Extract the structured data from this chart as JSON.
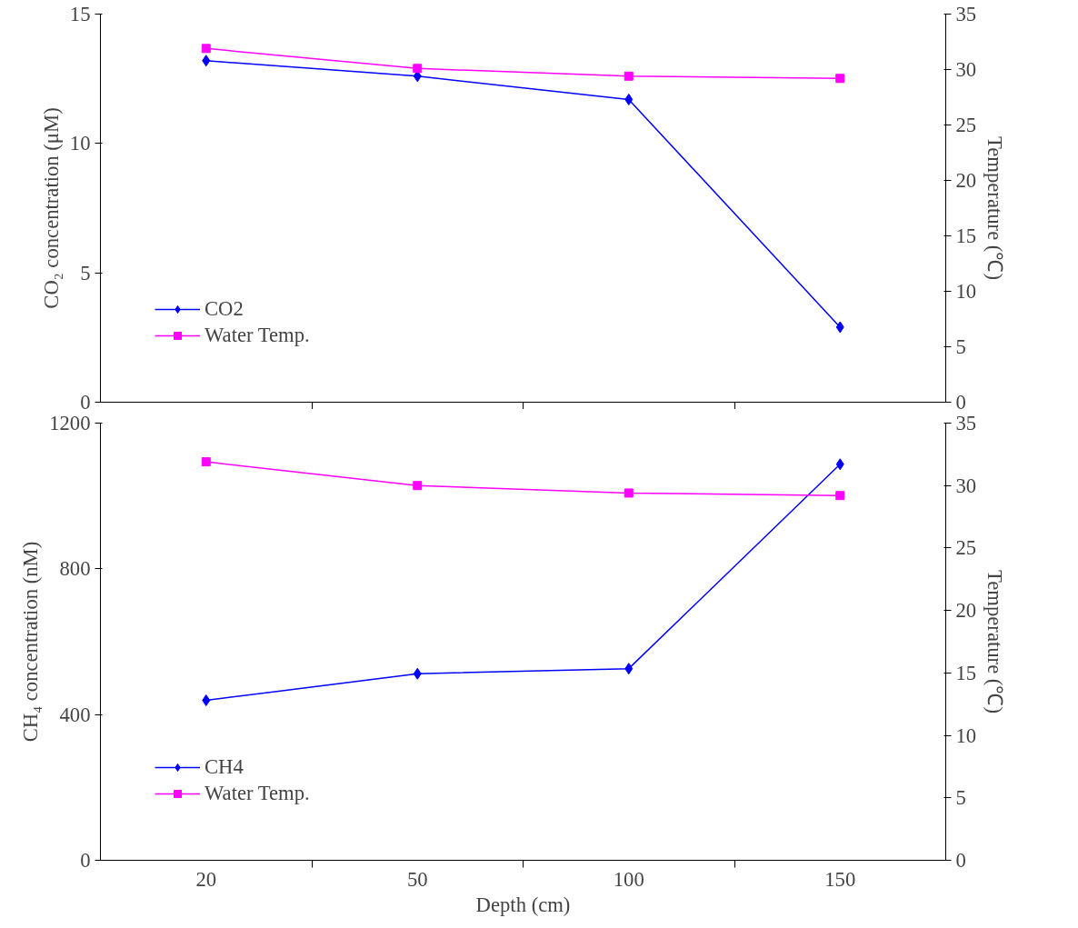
{
  "chart_data": [
    {
      "type": "line",
      "categories": [
        "20",
        "50",
        "100",
        "150"
      ],
      "ylabel": "CO₂ concentration (μM)",
      "y2label": "Temperature (℃)",
      "ylim": [
        0,
        15
      ],
      "yticks": [
        0,
        5,
        10,
        15
      ],
      "y2lim": [
        0,
        35
      ],
      "y2ticks": [
        0,
        5,
        10,
        15,
        20,
        25,
        30,
        35
      ],
      "tick_labels": "y",
      "grid": false,
      "legend": "bottom left",
      "series": [
        {
          "name": "CO2",
          "color": "#0000ff",
          "marker": "diamond",
          "values": [
            13.2,
            12.6,
            11.7,
            2.9
          ]
        },
        {
          "name": "Water Temp.",
          "color": "#ff00ff",
          "marker": "square",
          "axis": "y2",
          "values": [
            31.9,
            30.1,
            29.4,
            29.2
          ]
        }
      ]
    },
    {
      "type": "line",
      "categories": [
        "20",
        "50",
        "100",
        "150"
      ],
      "xlabel": "Depth (cm)",
      "ylabel": "CH₄ concentration (nM)",
      "y2label": "Temperature (℃)",
      "ylim": [
        0,
        1200
      ],
      "yticks": [
        0,
        400,
        800,
        1200
      ],
      "y2lim": [
        0,
        35
      ],
      "y2ticks": [
        0,
        5,
        10,
        15,
        20,
        25,
        30,
        35
      ],
      "grid": false,
      "legend": "bottom left",
      "series": [
        {
          "name": "CH4",
          "color": "#0000ff",
          "marker": "diamond",
          "values": [
            439,
            512,
            526,
            1087
          ]
        },
        {
          "name": "Water Temp.",
          "color": "#ff00ff",
          "marker": "square",
          "axis": "y2",
          "values": [
            31.9,
            30.0,
            29.4,
            29.2
          ]
        }
      ]
    }
  ]
}
